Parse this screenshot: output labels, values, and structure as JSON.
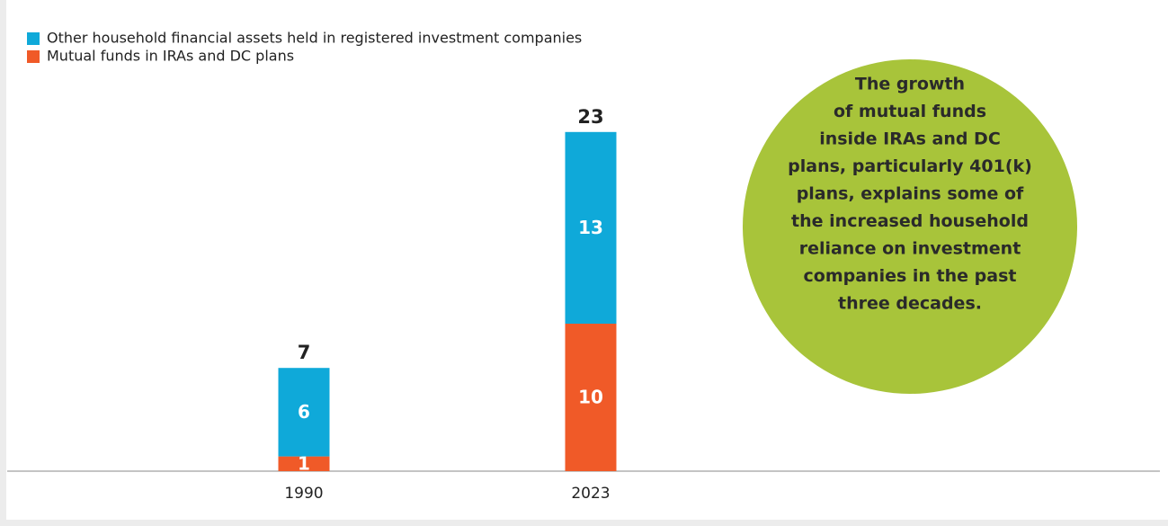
{
  "chart_data": {
    "type": "stacked_bar",
    "categories": [
      "1990",
      "2023"
    ],
    "series": [
      {
        "name": "Mutual funds in IRAs and DC plans",
        "color": "#f05a28",
        "values": [
          1,
          10
        ]
      },
      {
        "name": "Other household financial assets held in registered investment companies",
        "color": "#0fa9d9",
        "values": [
          6,
          13
        ]
      }
    ],
    "totals": [
      7,
      23
    ],
    "annotation": [
      "The growth",
      "of mutual funds",
      "inside IRAs and DC",
      "plans, particularly 401(k)",
      "plans, explains some of",
      "the increased household",
      "reliance on investment",
      "companies in the past",
      "three decades."
    ],
    "annotation_color": "#a8c43a"
  }
}
